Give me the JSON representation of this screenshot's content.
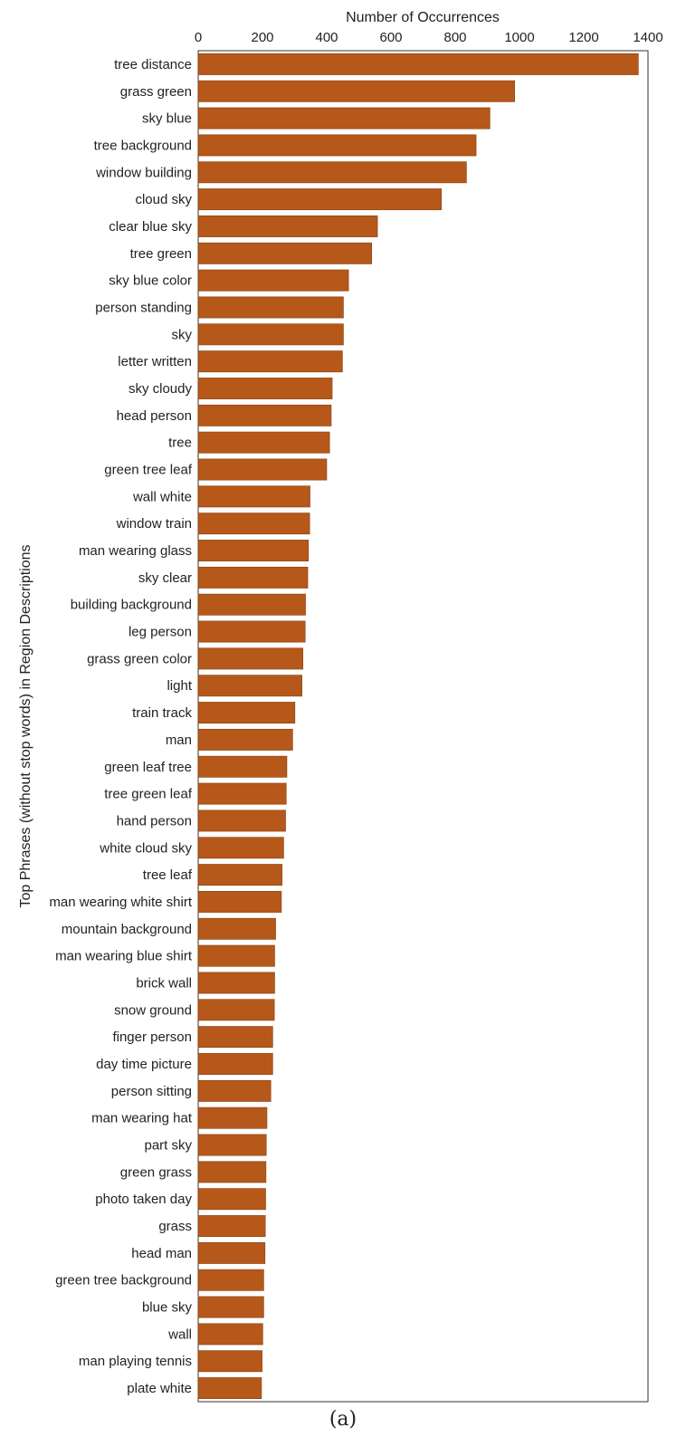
{
  "chart_data": {
    "type": "bar",
    "orientation": "horizontal",
    "xlabel": "Number of Occurrences",
    "ylabel": "Top Phrases (without stop words) in Region Descriptions",
    "xlim": [
      0,
      1400
    ],
    "xticks": [
      0,
      200,
      400,
      600,
      800,
      1000,
      1200,
      1400
    ],
    "x_axis_position": "top",
    "grid": false,
    "bar_color": "#B5581A",
    "categories": [
      "tree distance",
      "grass green",
      "sky blue",
      "tree background",
      "window building",
      "cloud sky",
      "clear blue sky",
      "tree green",
      "sky blue color",
      "person standing",
      "sky",
      "letter written",
      "sky cloudy",
      "head person",
      "tree",
      "green tree leaf",
      "wall white",
      "window train",
      "man wearing glass",
      "sky clear",
      "building background",
      "leg person",
      "grass green color",
      "light",
      "train track",
      "man",
      "green leaf tree",
      "tree green leaf",
      "hand person",
      "white cloud sky",
      "tree leaf",
      "man wearing white shirt",
      "mountain background",
      "man wearing blue shirt",
      "brick wall",
      "snow ground",
      "finger person",
      "day time picture",
      "person sitting",
      "man wearing hat",
      "part sky",
      "green grass",
      "photo taken day",
      "grass",
      "head man",
      "green tree background",
      "blue sky",
      "wall",
      "man playing tennis",
      "plate white"
    ],
    "values": [
      1370,
      985,
      908,
      865,
      835,
      757,
      558,
      540,
      468,
      452,
      452,
      449,
      417,
      414,
      409,
      400,
      348,
      347,
      343,
      341,
      334,
      333,
      326,
      323,
      301,
      294,
      276,
      274,
      272,
      266,
      261,
      259,
      241,
      238,
      238,
      237,
      232,
      232,
      226,
      214,
      212,
      211,
      210,
      209,
      208,
      204,
      204,
      201,
      199,
      197
    ]
  },
  "caption": "(a)"
}
